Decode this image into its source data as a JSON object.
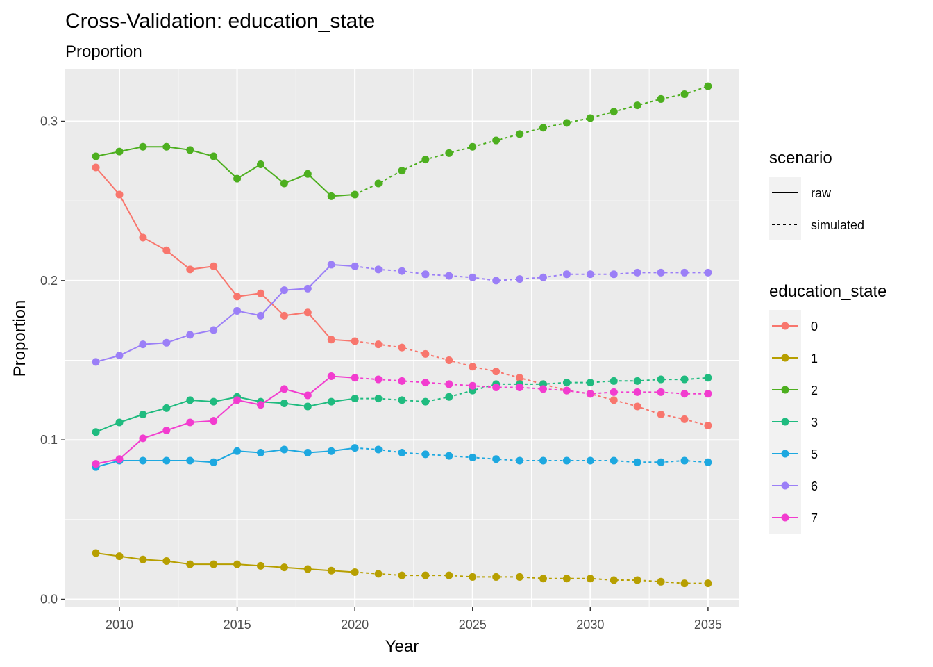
{
  "chart_data": {
    "type": "line",
    "title": "Cross-Validation: education_state",
    "subtitle": "Proportion",
    "xlabel": "Year",
    "ylabel": "Proportion",
    "xlim": [
      2007.7,
      2036.3
    ],
    "ylim": [
      -0.005,
      0.3325
    ],
    "x_ticks": [
      2010,
      2015,
      2020,
      2025,
      2030,
      2035
    ],
    "y_ticks": [
      0.0,
      0.1,
      0.2,
      0.3
    ],
    "y_tick_labels": [
      "0.0",
      "0.1",
      "0.2",
      "0.3"
    ],
    "grid": true,
    "background": "#ebebeb",
    "legend_position": "right",
    "legends": {
      "scenario": {
        "title": "scenario",
        "items": [
          {
            "label": "raw",
            "linetype": "solid"
          },
          {
            "label": "simulated",
            "linetype": "dotted"
          }
        ]
      },
      "education_state": {
        "title": "education_state"
      }
    },
    "series": [
      {
        "name": "0",
        "color": "#F8766D",
        "raw": {
          "x": [
            2009,
            2010,
            2011,
            2012,
            2013,
            2014,
            2015,
            2016,
            2017,
            2018,
            2019,
            2020
          ],
          "y": [
            0.271,
            0.254,
            0.227,
            0.219,
            0.207,
            0.209,
            0.19,
            0.192,
            0.178,
            0.18,
            0.163,
            0.162
          ]
        },
        "simulated": {
          "x": [
            2020,
            2021,
            2022,
            2023,
            2024,
            2025,
            2026,
            2027,
            2028,
            2029,
            2030,
            2031,
            2032,
            2033,
            2034,
            2035
          ],
          "y": [
            0.162,
            0.16,
            0.158,
            0.154,
            0.15,
            0.146,
            0.143,
            0.139,
            0.135,
            0.131,
            0.129,
            0.125,
            0.121,
            0.116,
            0.113,
            0.109
          ]
        }
      },
      {
        "name": "1",
        "color": "#B79F00",
        "raw": {
          "x": [
            2009,
            2010,
            2011,
            2012,
            2013,
            2014,
            2015,
            2016,
            2017,
            2018,
            2019,
            2020
          ],
          "y": [
            0.029,
            0.027,
            0.025,
            0.024,
            0.022,
            0.022,
            0.022,
            0.021,
            0.02,
            0.019,
            0.018,
            0.017
          ]
        },
        "simulated": {
          "x": [
            2020,
            2021,
            2022,
            2023,
            2024,
            2025,
            2026,
            2027,
            2028,
            2029,
            2030,
            2031,
            2032,
            2033,
            2034,
            2035
          ],
          "y": [
            0.017,
            0.016,
            0.015,
            0.015,
            0.015,
            0.014,
            0.014,
            0.014,
            0.013,
            0.013,
            0.013,
            0.012,
            0.012,
            0.011,
            0.01,
            0.01
          ]
        }
      },
      {
        "name": "2",
        "color": "#4DAF1F",
        "raw": {
          "x": [
            2009,
            2010,
            2011,
            2012,
            2013,
            2014,
            2015,
            2016,
            2017,
            2018,
            2019,
            2020
          ],
          "y": [
            0.278,
            0.281,
            0.284,
            0.284,
            0.282,
            0.278,
            0.264,
            0.273,
            0.261,
            0.267,
            0.253,
            0.254
          ]
        },
        "simulated": {
          "x": [
            2020,
            2021,
            2022,
            2023,
            2024,
            2025,
            2026,
            2027,
            2028,
            2029,
            2030,
            2031,
            2032,
            2033,
            2034,
            2035
          ],
          "y": [
            0.254,
            0.261,
            0.269,
            0.276,
            0.28,
            0.284,
            0.288,
            0.292,
            0.296,
            0.299,
            0.302,
            0.306,
            0.31,
            0.314,
            0.317,
            0.322
          ]
        }
      },
      {
        "name": "3",
        "color": "#1FBB7F",
        "raw": {
          "x": [
            2009,
            2010,
            2011,
            2012,
            2013,
            2014,
            2015,
            2016,
            2017,
            2018,
            2019,
            2020
          ],
          "y": [
            0.105,
            0.111,
            0.116,
            0.12,
            0.125,
            0.124,
            0.127,
            0.124,
            0.123,
            0.121,
            0.124,
            0.126
          ]
        },
        "simulated": {
          "x": [
            2020,
            2021,
            2022,
            2023,
            2024,
            2025,
            2026,
            2027,
            2028,
            2029,
            2030,
            2031,
            2032,
            2033,
            2034,
            2035
          ],
          "y": [
            0.126,
            0.126,
            0.125,
            0.124,
            0.127,
            0.131,
            0.135,
            0.135,
            0.135,
            0.136,
            0.136,
            0.137,
            0.137,
            0.138,
            0.138,
            0.139
          ]
        }
      },
      {
        "name": "5",
        "color": "#1DA8E0",
        "raw": {
          "x": [
            2009,
            2010,
            2011,
            2012,
            2013,
            2014,
            2015,
            2016,
            2017,
            2018,
            2019,
            2020
          ],
          "y": [
            0.083,
            0.087,
            0.087,
            0.087,
            0.087,
            0.086,
            0.093,
            0.092,
            0.094,
            0.092,
            0.093,
            0.095
          ]
        },
        "simulated": {
          "x": [
            2020,
            2021,
            2022,
            2023,
            2024,
            2025,
            2026,
            2027,
            2028,
            2029,
            2030,
            2031,
            2032,
            2033,
            2034,
            2035
          ],
          "y": [
            0.095,
            0.094,
            0.092,
            0.091,
            0.09,
            0.089,
            0.088,
            0.087,
            0.087,
            0.087,
            0.087,
            0.087,
            0.086,
            0.086,
            0.087,
            0.086
          ]
        }
      },
      {
        "name": "6",
        "color": "#9B7FF7",
        "raw": {
          "x": [
            2009,
            2010,
            2011,
            2012,
            2013,
            2014,
            2015,
            2016,
            2017,
            2018,
            2019,
            2020
          ],
          "y": [
            0.149,
            0.153,
            0.16,
            0.161,
            0.166,
            0.169,
            0.181,
            0.178,
            0.194,
            0.195,
            0.21,
            0.209
          ]
        },
        "simulated": {
          "x": [
            2020,
            2021,
            2022,
            2023,
            2024,
            2025,
            2026,
            2027,
            2028,
            2029,
            2030,
            2031,
            2032,
            2033,
            2034,
            2035
          ],
          "y": [
            0.209,
            0.207,
            0.206,
            0.204,
            0.203,
            0.202,
            0.2,
            0.201,
            0.202,
            0.204,
            0.204,
            0.204,
            0.205,
            0.205,
            0.205,
            0.205
          ]
        }
      },
      {
        "name": "7",
        "color": "#F23CCF",
        "raw": {
          "x": [
            2009,
            2010,
            2011,
            2012,
            2013,
            2014,
            2015,
            2016,
            2017,
            2018,
            2019,
            2020
          ],
          "y": [
            0.085,
            0.088,
            0.101,
            0.106,
            0.111,
            0.112,
            0.125,
            0.122,
            0.132,
            0.128,
            0.14,
            0.139
          ]
        },
        "simulated": {
          "x": [
            2020,
            2021,
            2022,
            2023,
            2024,
            2025,
            2026,
            2027,
            2028,
            2029,
            2030,
            2031,
            2032,
            2033,
            2034,
            2035
          ],
          "y": [
            0.139,
            0.138,
            0.137,
            0.136,
            0.135,
            0.134,
            0.133,
            0.133,
            0.132,
            0.131,
            0.129,
            0.13,
            0.13,
            0.13,
            0.129,
            0.129
          ]
        }
      }
    ]
  }
}
